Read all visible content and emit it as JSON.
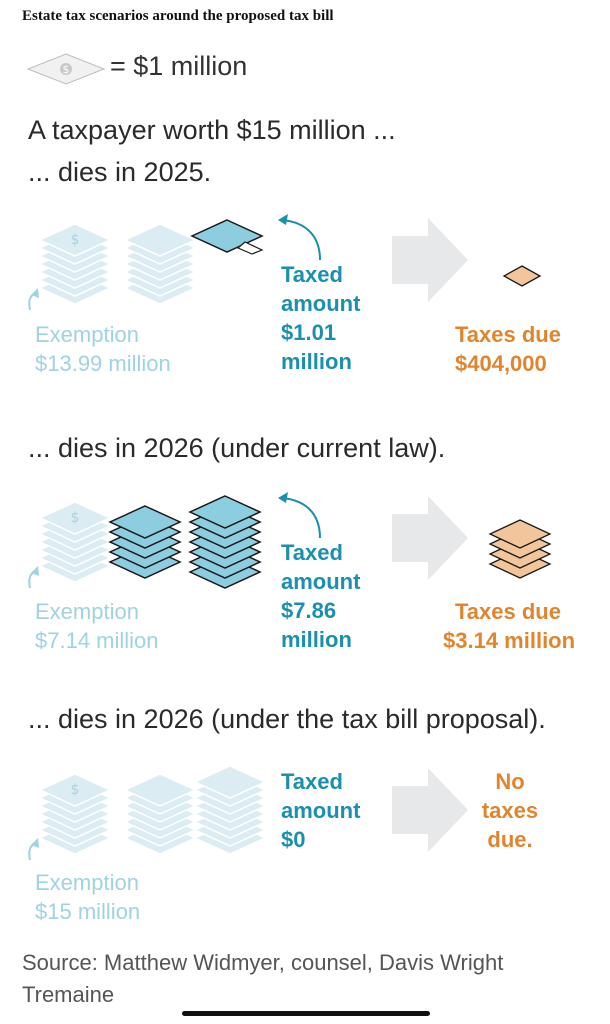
{
  "headline": "Estate tax scenarios around the proposed tax bill",
  "legend": {
    "text": "= $1 million",
    "icon": "dollar-bill-icon"
  },
  "intro": "A taxpayer worth $15 million ...",
  "scenarios": [
    {
      "heading": "... dies in 2025.",
      "exemption_label": "Exemption",
      "exemption_value": "$13.99 million",
      "taxed_label": "Taxed amount",
      "taxed_value": "$1.01 million",
      "taxed_line1": "Taxed",
      "taxed_line2": "amount",
      "taxed_line3": "$1.01",
      "taxed_line4": "million",
      "due_line1": "Taxes due",
      "due_line2": "$404,000"
    },
    {
      "heading": "... dies in 2026 (under current law).",
      "exemption_label": "Exemption",
      "exemption_value": "$7.14 million",
      "taxed_line1": "Taxed",
      "taxed_line2": "amount",
      "taxed_line3": "$7.86",
      "taxed_line4": "million",
      "due_line1": "Taxes due",
      "due_line2": "$3.14 million"
    },
    {
      "heading": "... dies in 2026 (under the tax bill proposal).",
      "exemption_label": "Exemption",
      "exemption_value": "$15 million",
      "taxed_line1": "Taxed",
      "taxed_line2": "amount",
      "taxed_line3": "$0",
      "due_line1": "No",
      "due_line2": "taxes",
      "due_line3": "due."
    }
  ],
  "source": "Source: Matthew Widmyer, counsel, Davis Wright Tremaine",
  "colors": {
    "exemption": "#dcecf3",
    "exemption_text": "#9fd3e2",
    "taxed": "#8ccde0",
    "taxed_text": "#1a8fb0",
    "due": "#f2c69a",
    "due_text": "#e0852e",
    "arrow": "#e7e8e9"
  }
}
